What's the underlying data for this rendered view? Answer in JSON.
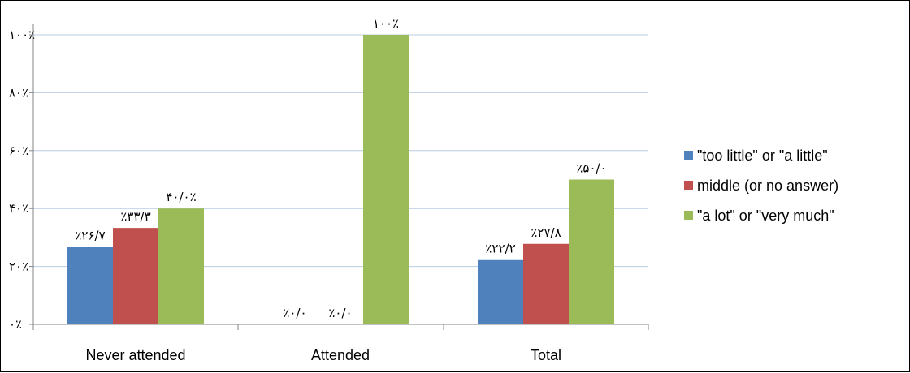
{
  "chart_data": {
    "type": "bar",
    "categories": [
      "Never attended",
      "Attended",
      "Total"
    ],
    "series": [
      {
        "name": "\"too little\" or \"a little\"",
        "color": "#4F81BD",
        "values": [
          26.7,
          0.0,
          22.2
        ],
        "labels": [
          "٪۲۶/۷",
          "٪۰/۰",
          "٪۲۲/۲"
        ]
      },
      {
        "name": "middle (or no answer)",
        "color": "#C0504D",
        "values": [
          33.3,
          0.0,
          27.8
        ],
        "labels": [
          "٪۳۳/۳",
          "٪۰/۰",
          "٪۲۷/۸"
        ]
      },
      {
        "name": "\"a lot\" or \"very much\"",
        "color": "#9BBB59",
        "values": [
          40.0,
          100.0,
          50.0
        ],
        "labels": [
          "۴۰/۰٪",
          "۱۰۰٪",
          "٪۵۰/۰"
        ]
      }
    ],
    "y_ticks": [
      0,
      20,
      40,
      60,
      80,
      100
    ],
    "y_tick_labels": [
      "۰٪",
      "۲۰٪",
      "۴۰٪",
      "۶۰٪",
      "۸۰٪",
      "۱۰۰٪"
    ],
    "ylim": [
      0,
      100
    ],
    "gridlines": true,
    "gridline_color": "#B9CDE5",
    "legend_position": "right",
    "title": "",
    "xlabel": "",
    "ylabel": ""
  }
}
